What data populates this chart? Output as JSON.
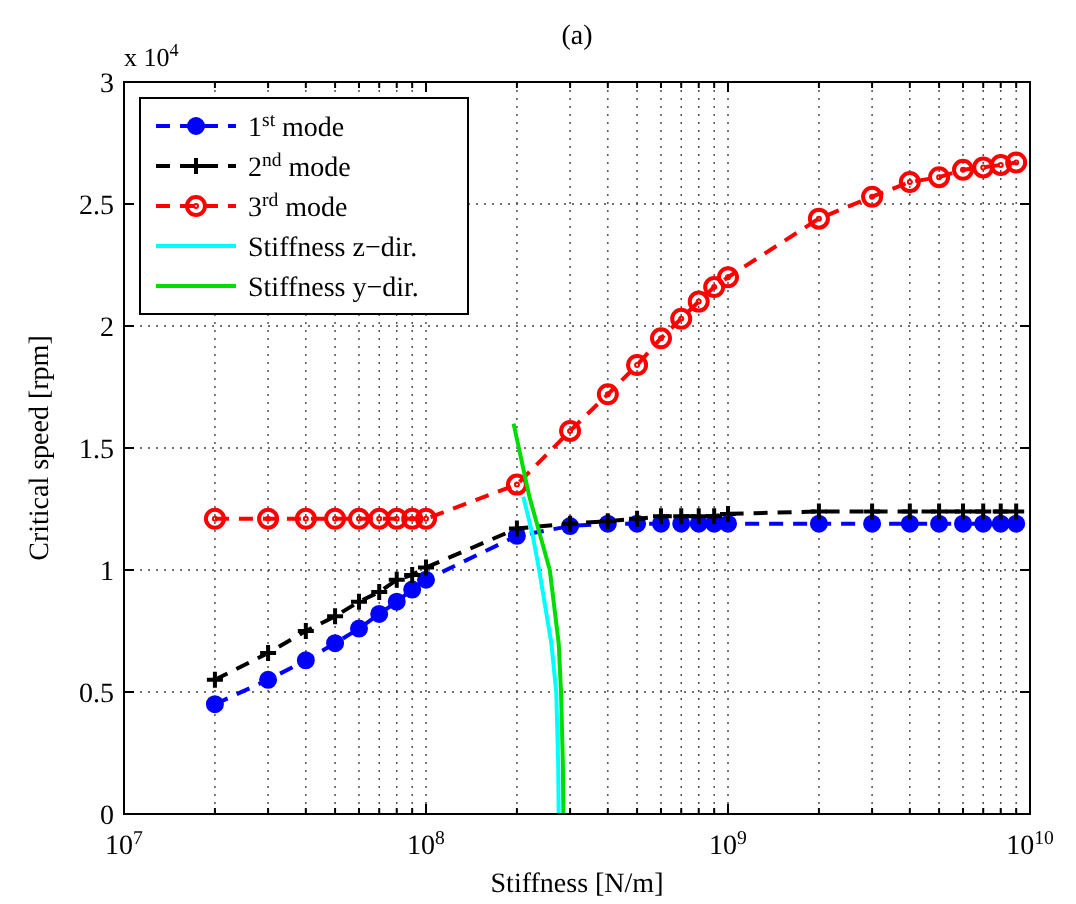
{
  "chart_data": {
    "type": "line",
    "title": "(a)",
    "xlabel": "Stiffness [N/m]",
    "ylabel": "Critical speed [rpm]",
    "annotations": [
      "x 10$^{4}$"
    ],
    "log": "x",
    "xlim": [
      10000000,
      10000000000
    ],
    "xticks": [
      {
        "value": 10000000,
        "label": "10$^{7}$"
      },
      {
        "value": 100000000,
        "label": "10$^{8}$"
      },
      {
        "value": 1000000000,
        "label": "10$^{9}$"
      },
      {
        "value": 10000000000,
        "label": "10$^{10}$"
      }
    ],
    "ylim": [
      0,
      3
    ],
    "yticks": [
      0,
      0.5,
      1,
      1.5,
      2,
      2.5,
      3
    ],
    "grid": true,
    "legend": "top left",
    "series": [
      {
        "name": "1$^{st}$ mode",
        "color": "#0000ff",
        "marker": "circle",
        "line_style": "dashed",
        "x": [
          20000000,
          30000000,
          40000000,
          50000000,
          60000000,
          70000000,
          80000000,
          90000000,
          100000000,
          200000000,
          300000000,
          400000000,
          500000000,
          600000000,
          700000000,
          800000000,
          900000000,
          1000000000,
          2000000000,
          3000000000,
          4000000000,
          5000000000,
          6000000000,
          7000000000,
          8000000000,
          9000000000
        ],
        "values": [
          0.45,
          0.55,
          0.63,
          0.7,
          0.76,
          0.82,
          0.87,
          0.92,
          0.96,
          1.14,
          1.18,
          1.19,
          1.19,
          1.19,
          1.19,
          1.19,
          1.19,
          1.19,
          1.19,
          1.19,
          1.19,
          1.19,
          1.19,
          1.19,
          1.19,
          1.19
        ]
      },
      {
        "name": "2$^{nd}$ mode",
        "color": "#000000",
        "marker": "cross",
        "line_style": "dashed",
        "x": [
          20000000,
          30000000,
          40000000,
          50000000,
          60000000,
          70000000,
          80000000,
          90000000,
          100000000,
          200000000,
          300000000,
          400000000,
          500000000,
          600000000,
          700000000,
          800000000,
          900000000,
          1000000000,
          2000000000,
          3000000000,
          4000000000,
          5000000000,
          6000000000,
          7000000000,
          8000000000,
          9000000000
        ],
        "values": [
          0.55,
          0.66,
          0.75,
          0.81,
          0.87,
          0.91,
          0.96,
          0.98,
          1.01,
          1.17,
          1.19,
          1.2,
          1.21,
          1.22,
          1.22,
          1.22,
          1.22,
          1.23,
          1.24,
          1.24,
          1.24,
          1.24,
          1.24,
          1.24,
          1.24,
          1.24
        ]
      },
      {
        "name": "3$^{rd}$ mode",
        "color": "#ff0000",
        "marker": "circle_open",
        "line_style": "dashed",
        "x": [
          20000000,
          30000000,
          40000000,
          50000000,
          60000000,
          70000000,
          80000000,
          90000000,
          100000000,
          200000000,
          300000000,
          400000000,
          500000000,
          600000000,
          700000000,
          800000000,
          900000000,
          1000000000,
          2000000000,
          3000000000,
          4000000000,
          5000000000,
          6000000000,
          7000000000,
          8000000000,
          9000000000
        ],
        "values": [
          1.21,
          1.21,
          1.21,
          1.21,
          1.21,
          1.21,
          1.21,
          1.21,
          1.21,
          1.35,
          1.57,
          1.72,
          1.84,
          1.95,
          2.03,
          2.1,
          2.16,
          2.2,
          2.44,
          2.53,
          2.59,
          2.61,
          2.64,
          2.65,
          2.66,
          2.67
        ]
      },
      {
        "name": "Stiffness z−dir.",
        "color": "#00ffff",
        "marker": "none",
        "line_style": "solid",
        "x": [
          210000000,
          225000000,
          237000000,
          260000000,
          270000000,
          274000000,
          275000000
        ],
        "values": [
          1.3,
          1.15,
          1.0,
          0.7,
          0.5,
          0.2,
          0
        ]
      },
      {
        "name": "Stiffness y−dir.",
        "color": "#00dd00",
        "marker": "none",
        "line_style": "solid",
        "x": [
          195000000,
          220000000,
          257000000,
          275000000,
          280000000,
          284000000,
          285000000
        ],
        "values": [
          1.6,
          1.3,
          1.0,
          0.7,
          0.5,
          0.2,
          0
        ]
      }
    ]
  }
}
